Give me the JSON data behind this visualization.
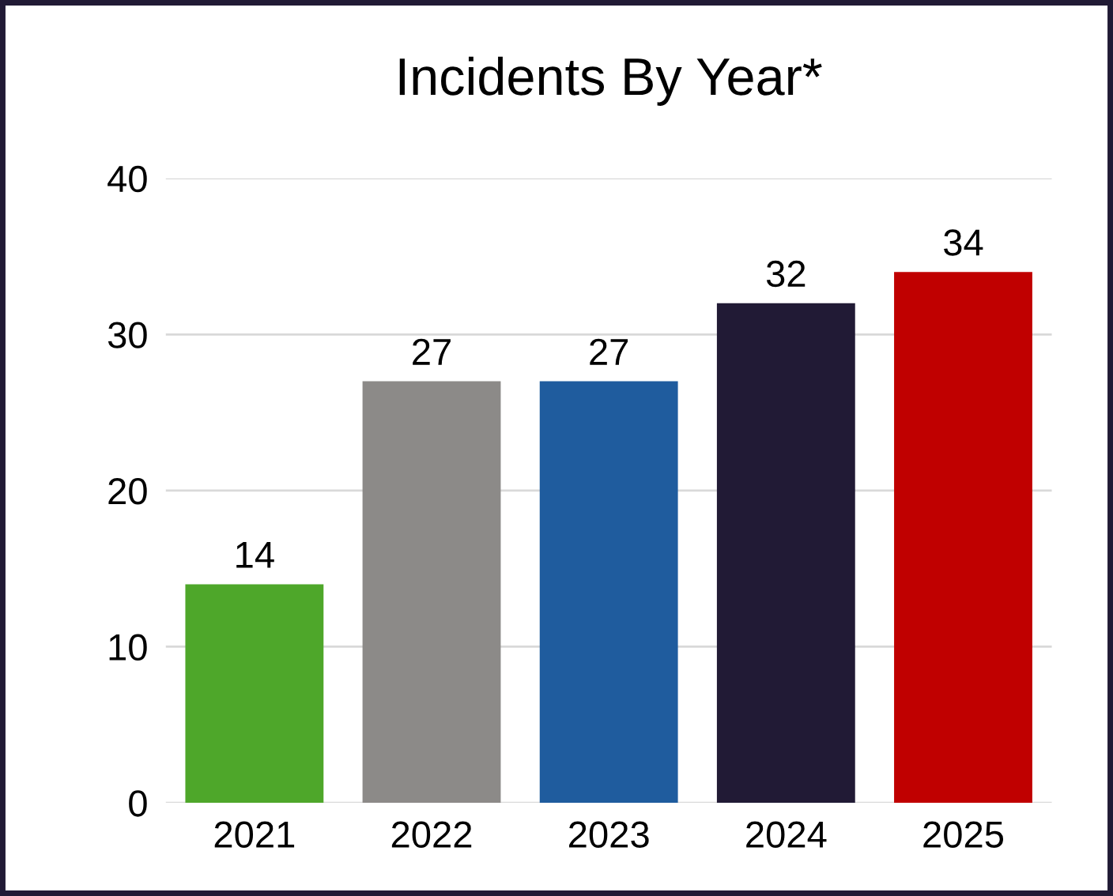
{
  "chart_data": {
    "type": "bar",
    "title": "Incidents By Year*",
    "categories": [
      "2021",
      "2022",
      "2023",
      "2024",
      "2025"
    ],
    "values": [
      14,
      27,
      27,
      32,
      34
    ],
    "colors": [
      "#4ea72a",
      "#8c8a88",
      "#1f5c9e",
      "#211a35",
      "#c00000"
    ],
    "ylim": [
      0,
      40
    ],
    "yticks": [
      0,
      10,
      20,
      30,
      40
    ],
    "grid": "y",
    "data_labels": true
  }
}
